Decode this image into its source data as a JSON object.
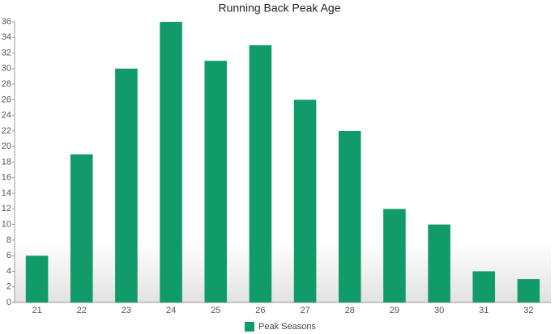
{
  "chart_data": {
    "type": "bar",
    "title": "Running Back Peak Age",
    "categories": [
      "21",
      "22",
      "23",
      "24",
      "25",
      "26",
      "27",
      "28",
      "29",
      "30",
      "31",
      "32"
    ],
    "series": [
      {
        "name": "Peak Seasons",
        "color": "#129b6a",
        "values": [
          6,
          19,
          30,
          36,
          31,
          33,
          26,
          22,
          12,
          10,
          4,
          3
        ]
      }
    ],
    "ylim": [
      0,
      36
    ],
    "yticks": [
      0,
      2,
      4,
      6,
      8,
      10,
      12,
      14,
      16,
      18,
      20,
      22,
      24,
      26,
      28,
      30,
      32,
      34,
      36
    ],
    "grid": false,
    "legend": "bottom"
  }
}
